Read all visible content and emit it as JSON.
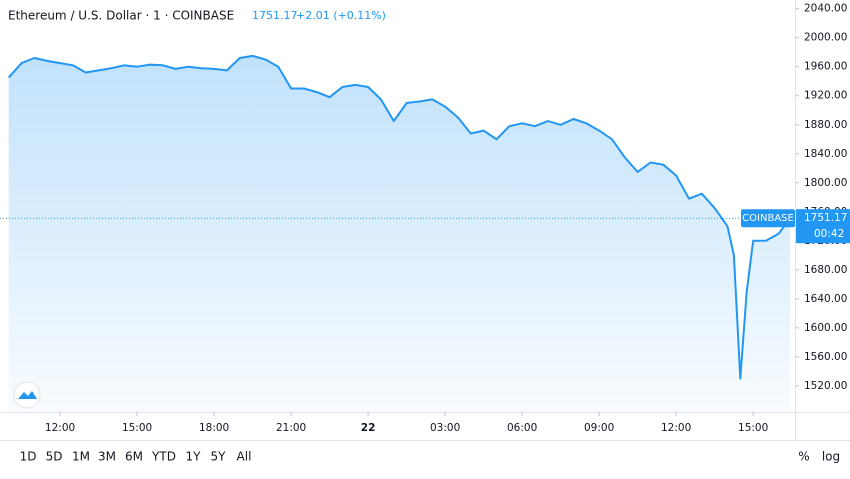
{
  "chart_data": {
    "type": "area",
    "title": "Ethereum / U.S. Dollar · 1 · COINBASE",
    "last_price": 1751.17,
    "change": "+2.01 (+0.11%)",
    "exchange_label": "COINBASE",
    "countdown": "00:42",
    "color": "#2196f3",
    "x": [
      10,
      10.5,
      11,
      11.5,
      12,
      12.5,
      13,
      13.5,
      14,
      14.5,
      15,
      15.5,
      16,
      16.5,
      17,
      17.5,
      18,
      18.5,
      19,
      19.5,
      20,
      20.5,
      21,
      21.5,
      22,
      22.5,
      23,
      23.5,
      24,
      24.5,
      25,
      25.5,
      26,
      26.5,
      27,
      27.5,
      28,
      28.5,
      29,
      29.5,
      30,
      30.5,
      31,
      31.5,
      32,
      32.5,
      33,
      33.5,
      34,
      34.5,
      35,
      35.5,
      36,
      36.5,
      37,
      37.5,
      38,
      38.25,
      38.5,
      38.75,
      39,
      39.5,
      40,
      40.44
    ],
    "values": [
      1945,
      1965,
      1972,
      1968,
      1965,
      1962,
      1952,
      1955,
      1958,
      1962,
      1960,
      1963,
      1962,
      1957,
      1960,
      1958,
      1957,
      1955,
      1972,
      1975,
      1970,
      1960,
      1930,
      1930,
      1925,
      1918,
      1932,
      1935,
      1932,
      1915,
      1885,
      1910,
      1912,
      1915,
      1905,
      1890,
      1868,
      1872,
      1860,
      1878,
      1882,
      1878,
      1885,
      1880,
      1888,
      1882,
      1872,
      1860,
      1835,
      1815,
      1828,
      1825,
      1810,
      1778,
      1785,
      1765,
      1740,
      1700,
      1530,
      1650,
      1720,
      1720,
      1730,
      1751.17
    ],
    "xlim": [
      9.66,
      40.63
    ],
    "xticks": [
      {
        "value": 12,
        "label": "12:00"
      },
      {
        "value": 15,
        "label": "15:00"
      },
      {
        "value": 18,
        "label": "18:00"
      },
      {
        "value": 21,
        "label": "21:00"
      },
      {
        "value": 24,
        "label": "22"
      },
      {
        "value": 27,
        "label": "03:00"
      },
      {
        "value": 30,
        "label": "06:00"
      },
      {
        "value": 33,
        "label": "09:00"
      },
      {
        "value": 36,
        "label": "12:00"
      },
      {
        "value": 39,
        "label": "15:00"
      }
    ],
    "ylim": [
      1484,
      2052
    ],
    "yticks": [
      {
        "value": 1520,
        "label": "1520.00"
      },
      {
        "value": 1560,
        "label": "1560.00"
      },
      {
        "value": 1600,
        "label": "1600.00"
      },
      {
        "value": 1640,
        "label": "1640.00"
      },
      {
        "value": 1680,
        "label": "1680.00"
      },
      {
        "value": 1720,
        "label": "1720.00"
      },
      {
        "value": 1760,
        "label": "1760.00"
      },
      {
        "value": 1800,
        "label": "1800.00"
      },
      {
        "value": 1840,
        "label": "1840.00"
      },
      {
        "value": 1880,
        "label": "1880.00"
      },
      {
        "value": 1920,
        "label": "1920.00"
      },
      {
        "value": 1960,
        "label": "1960.00"
      },
      {
        "value": 2000,
        "label": "2000.00"
      },
      {
        "value": 2040,
        "label": "2040.00"
      }
    ],
    "ranges": [
      "1D",
      "5D",
      "1M",
      "3M",
      "6M",
      "YTD",
      "1Y",
      "5Y",
      "All"
    ],
    "percent_label": "%",
    "log_label": "log"
  }
}
